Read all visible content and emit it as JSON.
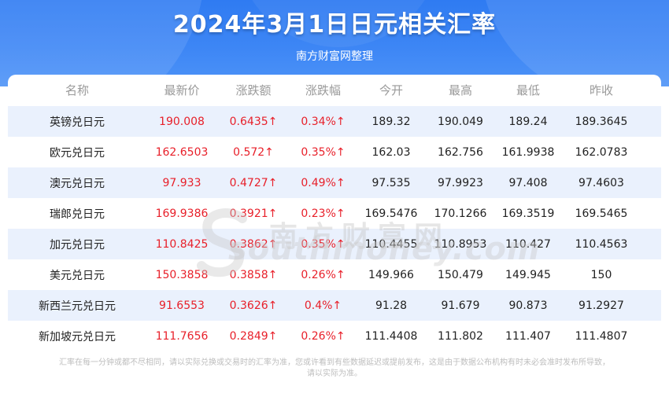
{
  "header": {
    "title": "2024年3月1日日元相关汇率",
    "subtitle": "南方财富网整理"
  },
  "table": {
    "columns": [
      "名称",
      "最新价",
      "涨跌额",
      "涨跌幅",
      "今开",
      "最高",
      "最低",
      "昨收"
    ],
    "rows": [
      {
        "name": "英镑兑日元",
        "latest": "190.008",
        "change": "0.6435↑",
        "pct": "0.34%↑",
        "open": "189.32",
        "high": "190.049",
        "low": "189.24",
        "prev": "189.3645"
      },
      {
        "name": "欧元兑日元",
        "latest": "162.6503",
        "change": "0.572↑",
        "pct": "0.35%↑",
        "open": "162.03",
        "high": "162.756",
        "low": "161.9938",
        "prev": "162.0783"
      },
      {
        "name": "澳元兑日元",
        "latest": "97.933",
        "change": "0.4727↑",
        "pct": "0.49%↑",
        "open": "97.535",
        "high": "97.9923",
        "low": "97.408",
        "prev": "97.4603"
      },
      {
        "name": "瑞郎兑日元",
        "latest": "169.9386",
        "change": "0.3921↑",
        "pct": "0.23%↑",
        "open": "169.5476",
        "high": "170.1266",
        "low": "169.3519",
        "prev": "169.5465"
      },
      {
        "name": "加元兑日元",
        "latest": "110.8425",
        "change": "0.3862↑",
        "pct": "0.35%↑",
        "open": "110.4455",
        "high": "110.8953",
        "low": "110.427",
        "prev": "110.4563"
      },
      {
        "name": "美元兑日元",
        "latest": "150.3858",
        "change": "0.3858↑",
        "pct": "0.26%↑",
        "open": "149.966",
        "high": "150.479",
        "low": "149.945",
        "prev": "150"
      },
      {
        "name": "新西兰元兑日元",
        "latest": "91.6553",
        "change": "0.3626↑",
        "pct": "0.4%↑",
        "open": "91.28",
        "high": "91.679",
        "low": "90.873",
        "prev": "91.2927"
      },
      {
        "name": "新加坡元兑日元",
        "latest": "111.7656",
        "change": "0.2849↑",
        "pct": "0.26%↑",
        "open": "111.4408",
        "high": "111.802",
        "low": "111.407",
        "prev": "111.4807"
      }
    ]
  },
  "watermark": {
    "cn": "南方财富网",
    "en": "southmoney.com"
  },
  "footer": {
    "line1": "汇率在每一分钟或都不尽相同，请以实际兑换或交易时的汇率为准，您或许看到有些数据延迟或提前发布，这是由于数据公布机构有时未必会准时发布所导致，",
    "line2": "请以实际为准。"
  },
  "colors": {
    "banner": "#3d86f5",
    "up": "#e8202a",
    "stripe": "#eaf1fd",
    "header_text": "#9a9a9a"
  }
}
